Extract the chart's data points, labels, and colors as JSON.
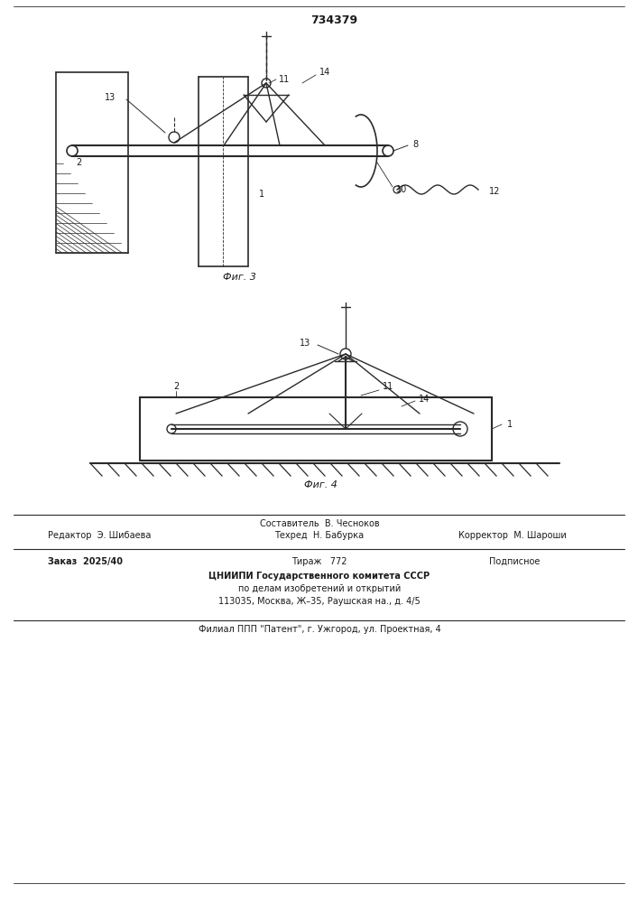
{
  "patent_number": "734379",
  "fig3_label": "Фиг. 3",
  "fig4_label": "Фиг. 4",
  "footer_line1": "Составитель  В. Чесноков",
  "footer_editor": "Редактор  Э. Шибаева",
  "footer_tech": "Техред  Н. Бабурка",
  "footer_corrector": "Корректор  М. Шароши",
  "footer_order": "Заказ  2025/40",
  "footer_print": "Тираж   772",
  "footer_subscription": "Подписное",
  "footer_org1": "ЦНИИПИ Государственного комитета СССР",
  "footer_org2": "по делам изобретений и открытий",
  "footer_org3": "113035, Москва, Ж–35, Раушская на., д. 4/5",
  "footer_branch": "Филиал ППП \"Патент\", г. Ужгород, ул. Проектная, 4",
  "bg_color": "#ffffff",
  "line_color": "#2a2a2a",
  "text_color": "#1a1a1a"
}
